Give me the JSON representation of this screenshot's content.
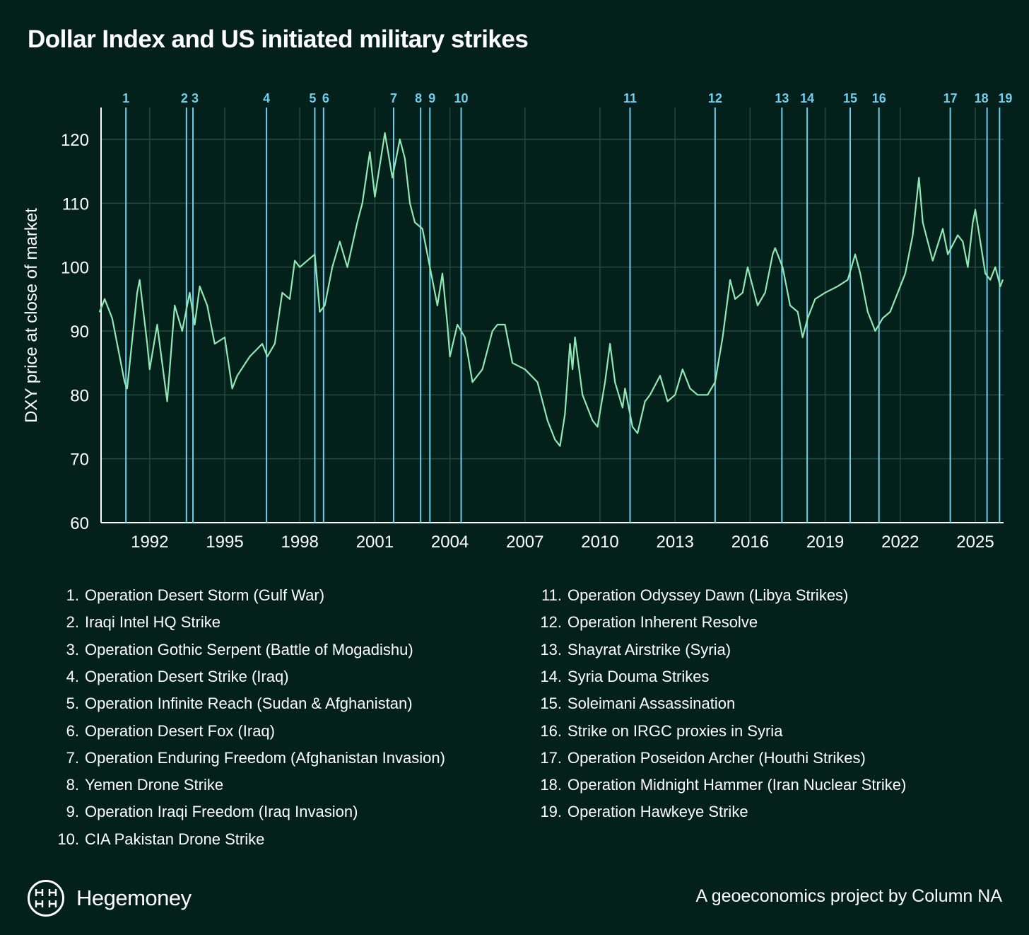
{
  "title": "Dollar Index and US initiated military strikes",
  "brand": "Hegemoney",
  "credit": "A geoeconomics project by Column NA",
  "colors": {
    "background": "#03201a",
    "line": "#8fe8b6",
    "strike": "#6fcdef",
    "grid": "#244a3d"
  },
  "chart_data": {
    "type": "line",
    "title": "Dollar Index and US initiated military strikes",
    "xlabel": "",
    "ylabel": "DXY price at close of market",
    "xlim": [
      1990,
      2026.1
    ],
    "ylim": [
      60,
      125
    ],
    "grid": true,
    "xticks": [
      1992,
      1995,
      1998,
      2001,
      2004,
      2007,
      2010,
      2013,
      2016,
      2019,
      2022,
      2025
    ],
    "yticks": [
      60,
      70,
      80,
      90,
      100,
      110,
      120
    ],
    "series": [
      {
        "name": "DXY",
        "x": [
          1990.0,
          1990.2,
          1990.5,
          1990.8,
          1991.0,
          1991.1,
          1991.5,
          1991.6,
          1991.9,
          1992.0,
          1992.3,
          1992.6,
          1992.7,
          1993.0,
          1993.3,
          1993.6,
          1993.8,
          1994.0,
          1994.3,
          1994.6,
          1995.0,
          1995.3,
          1995.5,
          1996.0,
          1996.5,
          1996.7,
          1997.0,
          1997.3,
          1997.6,
          1997.8,
          1998.0,
          1998.3,
          1998.6,
          1998.8,
          1999.0,
          1999.3,
          1999.6,
          1999.9,
          2000.3,
          2000.5,
          2000.8,
          2001.0,
          2001.4,
          2001.7,
          2002.0,
          2002.2,
          2002.4,
          2002.6,
          2002.9,
          2003.2,
          2003.5,
          2003.7,
          2003.9,
          2004.0,
          2004.3,
          2004.6,
          2004.9,
          2005.3,
          2005.7,
          2005.9,
          2006.2,
          2006.5,
          2007.0,
          2007.5,
          2007.9,
          2008.2,
          2008.4,
          2008.6,
          2008.8,
          2008.9,
          2009.0,
          2009.3,
          2009.7,
          2009.9,
          2010.2,
          2010.4,
          2010.6,
          2010.9,
          2011.0,
          2011.3,
          2011.5,
          2011.8,
          2012.0,
          2012.4,
          2012.7,
          2013.0,
          2013.3,
          2013.6,
          2013.9,
          2014.3,
          2014.6,
          2014.9,
          2015.2,
          2015.4,
          2015.7,
          2015.9,
          2016.3,
          2016.6,
          2016.9,
          2017.0,
          2017.3,
          2017.6,
          2017.9,
          2018.1,
          2018.3,
          2018.6,
          2019.0,
          2019.5,
          2019.9,
          2020.2,
          2020.4,
          2020.7,
          2020.9,
          2021.0,
          2021.3,
          2021.6,
          2021.9,
          2022.2,
          2022.5,
          2022.75,
          2022.9,
          2023.1,
          2023.3,
          2023.7,
          2023.9,
          2024.3,
          2024.5,
          2024.7,
          2024.9,
          2025.0,
          2025.2,
          2025.4,
          2025.6,
          2025.8,
          2026.0,
          2026.1
        ],
        "values": [
          93,
          95,
          92,
          86,
          82,
          81,
          96,
          98,
          88,
          84,
          91,
          82,
          79,
          94,
          90,
          96,
          91,
          97,
          94,
          88,
          89,
          81,
          83,
          86,
          88,
          86,
          88,
          96,
          95,
          101,
          100,
          101,
          102,
          93,
          94,
          100,
          104,
          100,
          107,
          110,
          118,
          111,
          121,
          114,
          120,
          117,
          110,
          107,
          106,
          100,
          94,
          99,
          91,
          86,
          91,
          89,
          82,
          84,
          90,
          91,
          91,
          85,
          84,
          82,
          76,
          73,
          72,
          77,
          88,
          84,
          89,
          80,
          76,
          75,
          82,
          88,
          82,
          78,
          81,
          75,
          74,
          79,
          80,
          83,
          79,
          80,
          84,
          81,
          80,
          80,
          82,
          89,
          98,
          95,
          96,
          100,
          94,
          96,
          102,
          103,
          100,
          94,
          93,
          89,
          92,
          95,
          96,
          97,
          98,
          102,
          99,
          93,
          91,
          90,
          92,
          93,
          96,
          99,
          105,
          114,
          107,
          104,
          101,
          106,
          102,
          105,
          104,
          100,
          107,
          109,
          104,
          99,
          98,
          100,
          97,
          98
        ]
      }
    ],
    "strikes": [
      {
        "n": "1",
        "x": 1991.05,
        "label": "Operation Desert Storm (Gulf War)"
      },
      {
        "n": "2",
        "x": 1993.47,
        "label": "Iraqi Intel HQ Strike"
      },
      {
        "n": "3",
        "x": 1993.73,
        "label": "Operation Gothic Serpent (Battle of Mogadishu)"
      },
      {
        "n": "4",
        "x": 1996.67,
        "label": "Operation Desert Strike (Iraq)"
      },
      {
        "n": "5",
        "x": 1998.6,
        "label": "Operation Infinite Reach (Sudan & Afghanistan)"
      },
      {
        "n": "6",
        "x": 1998.95,
        "label": "Operation Desert Fox (Iraq)"
      },
      {
        "n": "7",
        "x": 2001.75,
        "label": "Operation Enduring Freedom (Afghanistan Invasion)"
      },
      {
        "n": "8",
        "x": 2002.83,
        "label": "Yemen Drone Strike"
      },
      {
        "n": "9",
        "x": 2003.2,
        "label": "Operation Iraqi Freedom (Iraq Invasion)"
      },
      {
        "n": "10",
        "x": 2004.45,
        "label": "CIA Pakistan Drone Strike"
      },
      {
        "n": "11",
        "x": 2011.2,
        "label": "Operation Odyssey Dawn (Libya Strikes)"
      },
      {
        "n": "12",
        "x": 2014.6,
        "label": "Operation Inherent Resolve"
      },
      {
        "n": "13",
        "x": 2017.27,
        "label": "Shayrat Airstrike (Syria)"
      },
      {
        "n": "14",
        "x": 2018.28,
        "label": "Syria Douma Strikes"
      },
      {
        "n": "15",
        "x": 2020.0,
        "label": "Soleimani Assassination"
      },
      {
        "n": "16",
        "x": 2021.15,
        "label": "Strike on IRGC proxies in Syria"
      },
      {
        "n": "17",
        "x": 2024.0,
        "label": "Operation Poseidon Archer (Houthi Strikes)"
      },
      {
        "n": "18",
        "x": 2025.47,
        "label": "Operation Midnight Hammer (Iran Nuclear Strike)"
      },
      {
        "n": "19",
        "x": 2025.97,
        "label": "Operation Hawkeye Strike"
      }
    ]
  }
}
